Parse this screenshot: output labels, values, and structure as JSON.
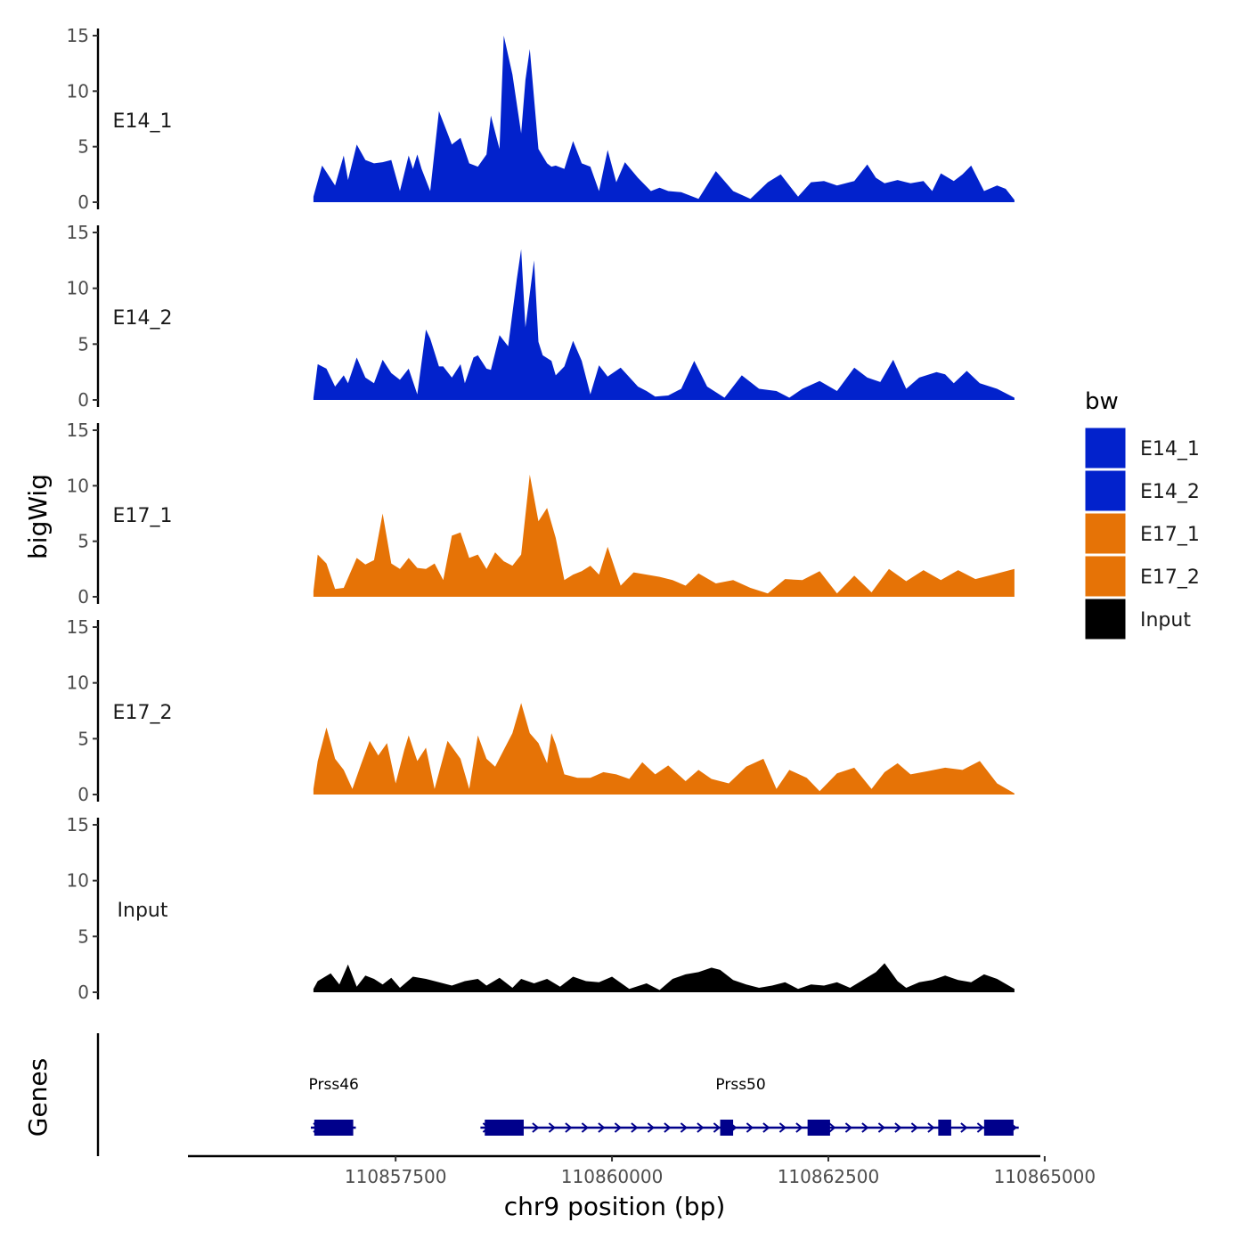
{
  "chart_data": {
    "type": "area",
    "title": "",
    "ylabel": "bigWig",
    "xlabel": "chr9 position (bp)",
    "gene_track_label": "Genes",
    "xlim": [
      110855100,
      110864950
    ],
    "ylim": [
      0,
      15
    ],
    "yticks": [
      {
        "v": 0,
        "label": "0"
      },
      {
        "v": 5,
        "label": "5"
      },
      {
        "v": 10,
        "label": "10"
      },
      {
        "v": 15,
        "label": "15"
      }
    ],
    "xticks": [
      {
        "v": 110857500,
        "label": "110857500"
      },
      {
        "v": 110860000,
        "label": "110860000"
      },
      {
        "v": 110862500,
        "label": "110862500"
      },
      {
        "v": 110865000,
        "label": "110865000"
      }
    ],
    "legend": {
      "title": "bw",
      "position": "right",
      "entries": [
        {
          "label": "E14_1",
          "color": "#0222CC"
        },
        {
          "label": "E14_2",
          "color": "#0222CC"
        },
        {
          "label": "E17_1",
          "color": "#E67306"
        },
        {
          "label": "E17_2",
          "color": "#E67306"
        },
        {
          "label": "Input",
          "color": "#000000"
        }
      ]
    },
    "series": [
      {
        "name": "E14_1",
        "color": "#0222CC",
        "x": [
          110856550,
          110856650,
          110856700,
          110856800,
          110856900,
          110856950,
          110857050,
          110857150,
          110857250,
          110857350,
          110857450,
          110857550,
          110857650,
          110857700,
          110857750,
          110857800,
          110857900,
          110858000,
          110858100,
          110858150,
          110858250,
          110858350,
          110858450,
          110858550,
          110858600,
          110858700,
          110858750,
          110858850,
          110858950,
          110859000,
          110859050,
          110859150,
          110859250,
          110859300,
          110859350,
          110859450,
          110859550,
          110859650,
          110859750,
          110859850,
          110859950,
          110860050,
          110860150,
          110860300,
          110860450,
          110860550,
          110860650,
          110860800,
          110860900,
          110861000,
          110861200,
          110861400,
          110861600,
          110861800,
          110861950,
          110862150,
          110862300,
          110862450,
          110862600,
          110862800,
          110862950,
          110863050,
          110863150,
          110863300,
          110863450,
          110863600,
          110863700,
          110863800,
          110863950,
          110864050,
          110864150,
          110864300,
          110864450,
          110864550,
          110864650
        ],
        "values": [
          0.5,
          3.3,
          2.7,
          1.5,
          4.2,
          2.0,
          5.2,
          3.8,
          3.5,
          3.6,
          3.8,
          1.0,
          4.2,
          3.0,
          4.3,
          3.0,
          1.0,
          8.2,
          6.2,
          5.2,
          5.8,
          3.5,
          3.2,
          4.3,
          7.8,
          4.8,
          15.0,
          11.5,
          6.2,
          11.0,
          13.8,
          4.8,
          3.5,
          3.2,
          3.3,
          3.0,
          5.5,
          3.5,
          3.2,
          1.0,
          4.7,
          1.8,
          3.6,
          2.2,
          1.0,
          1.3,
          1.0,
          0.9,
          0.6,
          0.3,
          2.8,
          1.0,
          0.3,
          1.8,
          2.5,
          0.5,
          1.8,
          1.9,
          1.5,
          1.9,
          3.4,
          2.2,
          1.7,
          2.0,
          1.7,
          1.9,
          1.0,
          2.6,
          1.9,
          2.5,
          3.3,
          1.0,
          1.5,
          1.2,
          0.2
        ]
      },
      {
        "name": "E14_2",
        "color": "#0222CC",
        "x": [
          110856550,
          110856600,
          110856700,
          110856800,
          110856900,
          110856950,
          110857050,
          110857150,
          110857250,
          110857350,
          110857450,
          110857550,
          110857650,
          110857750,
          110857850,
          110857900,
          110858000,
          110858050,
          110858150,
          110858250,
          110858300,
          110858400,
          110858450,
          110858550,
          110858600,
          110858700,
          110858800,
          110858900,
          110858950,
          110859000,
          110859100,
          110859150,
          110859200,
          110859300,
          110859350,
          110859450,
          110859550,
          110859650,
          110859750,
          110859850,
          110859950,
          110860100,
          110860300,
          110860400,
          110860500,
          110860650,
          110860800,
          110860950,
          110861100,
          110861300,
          110861500,
          110861700,
          110861900,
          110862050,
          110862200,
          110862400,
          110862600,
          110862800,
          110862950,
          110863100,
          110863250,
          110863400,
          110863550,
          110863750,
          110863850,
          110863950,
          110864100,
          110864250,
          110864450,
          110864650
        ],
        "values": [
          0.2,
          3.2,
          2.8,
          1.2,
          2.2,
          1.5,
          3.8,
          2.0,
          1.5,
          3.6,
          2.4,
          1.8,
          2.8,
          0.5,
          6.3,
          5.5,
          3.0,
          3.0,
          2.0,
          3.2,
          1.5,
          3.8,
          4.0,
          2.8,
          2.7,
          5.8,
          4.8,
          10.8,
          13.5,
          6.5,
          12.5,
          5.2,
          4.0,
          3.5,
          2.2,
          3.0,
          5.3,
          3.5,
          0.5,
          3.1,
          2.1,
          2.9,
          1.2,
          0.8,
          0.3,
          0.4,
          1.0,
          3.5,
          1.2,
          0.2,
          2.2,
          1.0,
          0.8,
          0.2,
          1.0,
          1.7,
          0.8,
          2.9,
          2.0,
          1.6,
          3.6,
          1.0,
          2.0,
          2.5,
          2.3,
          1.5,
          2.6,
          1.5,
          1.0,
          0.2
        ]
      },
      {
        "name": "E17_1",
        "color": "#E67306",
        "x": [
          110856550,
          110856600,
          110856700,
          110856800,
          110856900,
          110857050,
          110857150,
          110857250,
          110857350,
          110857450,
          110857550,
          110857650,
          110857750,
          110857850,
          110857950,
          110858050,
          110858150,
          110858250,
          110858350,
          110858450,
          110858550,
          110858650,
          110858750,
          110858850,
          110858950,
          110859050,
          110859150,
          110859250,
          110859350,
          110859450,
          110859550,
          110859650,
          110859750,
          110859850,
          110859950,
          110860100,
          110860250,
          110860400,
          110860550,
          110860700,
          110860850,
          110861000,
          110861200,
          110861400,
          110861600,
          110861800,
          110862000,
          110862200,
          110862400,
          110862600,
          110862800,
          110863000,
          110863200,
          110863400,
          110863600,
          110863800,
          110864000,
          110864200,
          110864400,
          110864650
        ],
        "values": [
          0.5,
          3.8,
          3.0,
          0.7,
          0.8,
          3.5,
          2.9,
          3.3,
          7.5,
          3.0,
          2.5,
          3.5,
          2.6,
          2.5,
          3.0,
          1.5,
          5.5,
          5.8,
          3.5,
          3.8,
          2.5,
          4.0,
          3.2,
          2.8,
          3.8,
          11.0,
          6.8,
          8.0,
          5.3,
          1.5,
          2.0,
          2.3,
          2.8,
          2.0,
          4.5,
          1.0,
          2.2,
          2.0,
          1.8,
          1.5,
          1.0,
          2.1,
          1.2,
          1.5,
          0.8,
          0.3,
          1.6,
          1.5,
          2.3,
          0.3,
          1.9,
          0.4,
          2.5,
          1.4,
          2.4,
          1.5,
          2.4,
          1.6,
          2.0,
          2.5
        ]
      },
      {
        "name": "E17_2",
        "color": "#E67306",
        "x": [
          110856550,
          110856600,
          110856700,
          110856800,
          110856900,
          110857000,
          110857100,
          110857200,
          110857300,
          110857400,
          110857500,
          110857600,
          110857650,
          110857750,
          110857850,
          110857950,
          110858100,
          110858250,
          110858350,
          110858450,
          110858550,
          110858650,
          110858750,
          110858850,
          110858950,
          110859050,
          110859150,
          110859250,
          110859300,
          110859350,
          110859450,
          110859600,
          110859750,
          110859900,
          110860050,
          110860200,
          110860350,
          110860500,
          110860650,
          110860850,
          110861000,
          110861150,
          110861350,
          110861550,
          110861750,
          110861900,
          110862050,
          110862250,
          110862400,
          110862600,
          110862800,
          110863000,
          110863150,
          110863300,
          110863450,
          110863650,
          110863850,
          110864050,
          110864250,
          110864450,
          110864650
        ],
        "values": [
          0.5,
          3.0,
          6.0,
          3.2,
          2.2,
          0.5,
          2.7,
          4.8,
          3.5,
          4.6,
          1.0,
          4.0,
          5.3,
          3.0,
          4.2,
          0.5,
          4.8,
          3.2,
          0.5,
          5.3,
          3.2,
          2.5,
          4.0,
          5.5,
          8.2,
          5.5,
          4.6,
          2.8,
          5.5,
          4.5,
          1.8,
          1.5,
          1.5,
          2.0,
          1.8,
          1.4,
          2.9,
          1.8,
          2.6,
          1.2,
          2.2,
          1.4,
          1.0,
          2.5,
          3.2,
          0.5,
          2.2,
          1.5,
          0.3,
          1.9,
          2.4,
          0.5,
          2.0,
          2.8,
          1.8,
          2.1,
          2.4,
          2.2,
          3.0,
          1.0,
          0.1
        ]
      },
      {
        "name": "Input",
        "color": "#000000",
        "x": [
          110856550,
          110856600,
          110856750,
          110856850,
          110856950,
          110857050,
          110857150,
          110857250,
          110857350,
          110857450,
          110857550,
          110857700,
          110857850,
          110858000,
          110858150,
          110858300,
          110858450,
          110858550,
          110858700,
          110858850,
          110858950,
          110859100,
          110859250,
          110859400,
          110859550,
          110859700,
          110859850,
          110860000,
          110860200,
          110860400,
          110860550,
          110860700,
          110860850,
          110861000,
          110861150,
          110861250,
          110861400,
          110861550,
          110861700,
          110861850,
          110862000,
          110862150,
          110862300,
          110862450,
          110862600,
          110862750,
          110862900,
          110863050,
          110863150,
          110863300,
          110863400,
          110863550,
          110863700,
          110863850,
          110864000,
          110864150,
          110864300,
          110864450,
          110864650
        ],
        "values": [
          0.3,
          1.0,
          1.7,
          0.7,
          2.5,
          0.5,
          1.5,
          1.2,
          0.7,
          1.3,
          0.4,
          1.4,
          1.2,
          0.9,
          0.6,
          1.0,
          1.2,
          0.6,
          1.3,
          0.4,
          1.2,
          0.8,
          1.2,
          0.5,
          1.4,
          1.0,
          0.9,
          1.4,
          0.3,
          0.8,
          0.2,
          1.2,
          1.6,
          1.8,
          2.2,
          2.0,
          1.1,
          0.7,
          0.4,
          0.6,
          0.9,
          0.3,
          0.7,
          0.6,
          0.9,
          0.4,
          1.1,
          1.8,
          2.6,
          1.0,
          0.4,
          0.9,
          1.1,
          1.5,
          1.1,
          0.9,
          1.6,
          1.2,
          0.3
        ]
      }
    ],
    "genes": [
      {
        "name": "Prss46",
        "start": 110856520,
        "end": 110857040,
        "strand": "+",
        "exons": [
          [
            110856560,
            110857010
          ]
        ]
      },
      {
        "name": "Prss50",
        "start": 110858480,
        "end": 110864700,
        "strand": "+",
        "exons": [
          [
            110858530,
            110858980
          ],
          [
            110861250,
            110861400
          ],
          [
            110862260,
            110862520
          ],
          [
            110863770,
            110863920
          ],
          [
            110864300,
            110864640
          ]
        ]
      }
    ]
  }
}
